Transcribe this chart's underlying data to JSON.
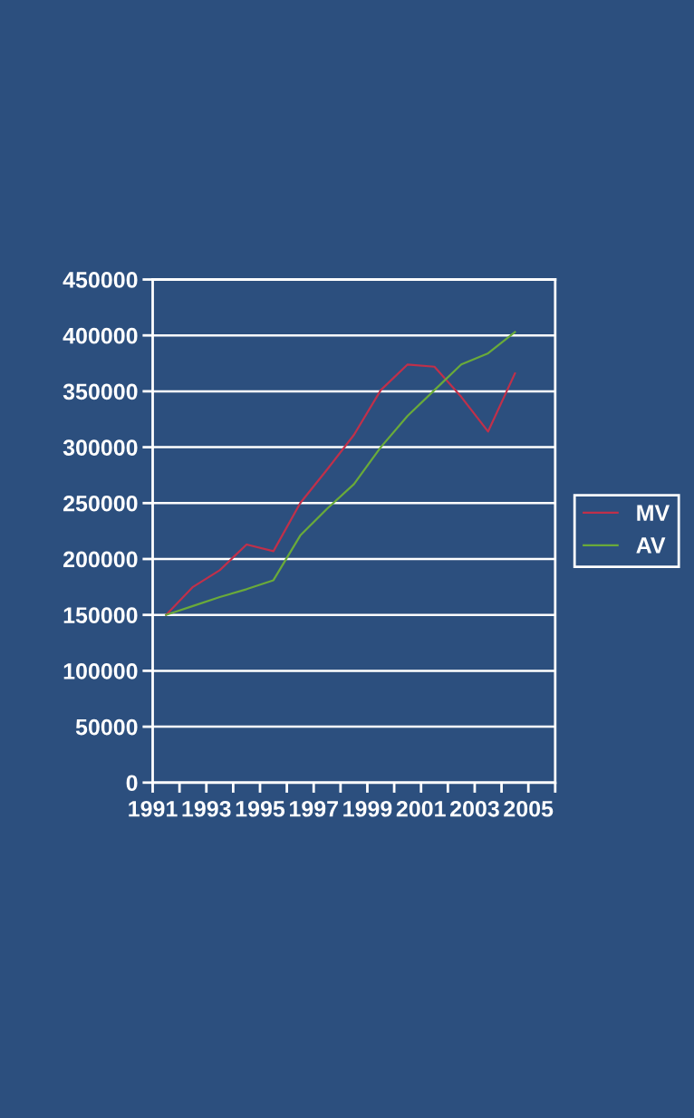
{
  "chart_data": {
    "type": "line",
    "x": [
      1991.5,
      1992.5,
      1993.5,
      1994.5,
      1995.5,
      1996.5,
      1997.5,
      1998.5,
      1999.5,
      2000.5,
      2001.5,
      2002.5,
      2003.5,
      2004.5
    ],
    "series": [
      {
        "name": "MV",
        "color": "#c0304a",
        "values": [
          150000,
          175000,
          190000,
          213000,
          207000,
          250000,
          280000,
          311000,
          351000,
          374000,
          372000,
          345000,
          314000,
          366000
        ]
      },
      {
        "name": "AV",
        "color": "#6aaa3a",
        "values": [
          150000,
          158000,
          166000,
          173000,
          181000,
          221000,
          245000,
          267000,
          300000,
          328000,
          351000,
          374000,
          384000,
          403000
        ]
      }
    ],
    "xlim": [
      1991,
      2006
    ],
    "xticks": [
      1991,
      {
        "value": 1992,
        "label": null
      },
      1993,
      {
        "value": 1994,
        "label": null
      },
      1995,
      {
        "value": 1996,
        "label": null
      },
      1997,
      {
        "value": 1998,
        "label": null
      },
      1999,
      {
        "value": 2000,
        "label": null
      },
      2001,
      {
        "value": 2002,
        "label": null
      },
      2003,
      {
        "value": 2004,
        "label": null
      },
      2005,
      {
        "value": 2006,
        "label": null
      }
    ],
    "ylim": [
      0,
      450000
    ],
    "yticks": [
      0,
      50000,
      100000,
      150000,
      200000,
      250000,
      300000,
      350000,
      400000,
      450000
    ],
    "grid": "y",
    "legend": "right",
    "marker": "none",
    "line_style": "solid"
  }
}
